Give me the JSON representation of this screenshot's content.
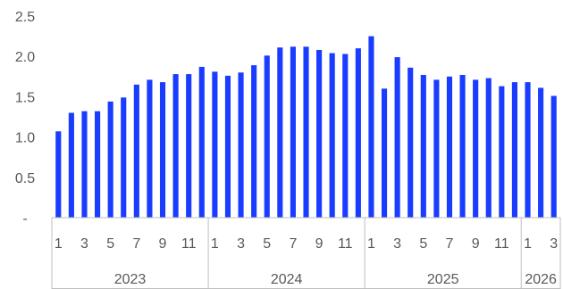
{
  "chart_data": {
    "type": "bar",
    "title": "",
    "xlabel": "",
    "ylabel": "",
    "ylim": [
      0,
      2.5
    ],
    "yticks": [
      {
        "value": 0,
        "label": "-"
      },
      {
        "value": 0.5,
        "label": "0.5"
      },
      {
        "value": 1.0,
        "label": "1.0"
      },
      {
        "value": 1.5,
        "label": "1.5"
      },
      {
        "value": 2.0,
        "label": "2.0"
      },
      {
        "value": 2.5,
        "label": "2.5"
      }
    ],
    "grid": false,
    "bar_color": "#1a3cff",
    "years": [
      {
        "label": "2023",
        "months": 12
      },
      {
        "label": "2024",
        "months": 12
      },
      {
        "label": "2025",
        "months": 12
      },
      {
        "label": "2026",
        "months": 3
      }
    ],
    "categories": [
      "2023-01",
      "2023-02",
      "2023-03",
      "2023-04",
      "2023-05",
      "2023-06",
      "2023-07",
      "2023-08",
      "2023-09",
      "2023-10",
      "2023-11",
      "2023-12",
      "2024-01",
      "2024-02",
      "2024-03",
      "2024-04",
      "2024-05",
      "2024-06",
      "2024-07",
      "2024-08",
      "2024-09",
      "2024-10",
      "2024-11",
      "2024-12",
      "2025-01",
      "2025-02",
      "2025-03",
      "2025-04",
      "2025-05",
      "2025-06",
      "2025-07",
      "2025-08",
      "2025-09",
      "2025-10",
      "2025-11",
      "2025-12",
      "2026-01",
      "2026-02",
      "2026-03"
    ],
    "month_tick_labels": [
      "1",
      "",
      "3",
      "",
      "5",
      "",
      "7",
      "",
      "9",
      "",
      "11",
      ""
    ],
    "values": [
      1.07,
      1.3,
      1.32,
      1.32,
      1.44,
      1.49,
      1.65,
      1.71,
      1.68,
      1.78,
      1.78,
      1.87,
      1.81,
      1.76,
      1.8,
      1.89,
      2.01,
      2.11,
      2.12,
      2.12,
      2.08,
      2.04,
      2.03,
      2.1,
      2.25,
      1.6,
      1.99,
      1.86,
      1.77,
      1.71,
      1.75,
      1.77,
      1.71,
      1.73,
      1.63,
      1.68,
      1.68,
      1.61,
      1.51
    ]
  }
}
